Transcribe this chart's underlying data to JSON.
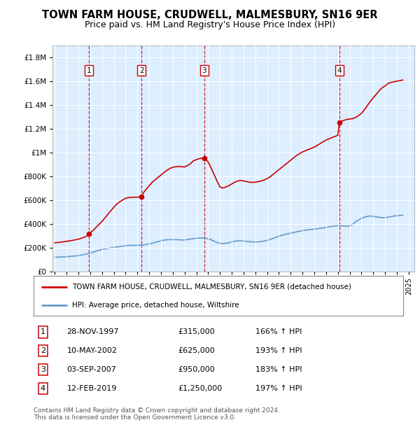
{
  "title": "TOWN FARM HOUSE, CRUDWELL, MALMESBURY, SN16 9ER",
  "subtitle": "Price paid vs. HM Land Registry's House Price Index (HPI)",
  "title_fontsize": 10.5,
  "subtitle_fontsize": 9,
  "background_color": "#ffffff",
  "plot_bg_color": "#ddeeff",
  "legend_line1": "TOWN FARM HOUSE, CRUDWELL, MALMESBURY, SN16 9ER (detached house)",
  "legend_line2": "HPI: Average price, detached house, Wiltshire",
  "footer": "Contains HM Land Registry data © Crown copyright and database right 2024.\nThis data is licensed under the Open Government Licence v3.0.",
  "transactions": [
    {
      "num": 1,
      "date": "28-NOV-1997",
      "price": 315000,
      "hpi_pct": "166% ↑ HPI",
      "year": 1997.91
    },
    {
      "num": 2,
      "date": "10-MAY-2002",
      "price": 625000,
      "hpi_pct": "193% ↑ HPI",
      "year": 2002.36
    },
    {
      "num": 3,
      "date": "03-SEP-2007",
      "price": 950000,
      "hpi_pct": "183% ↑ HPI",
      "year": 2007.67
    },
    {
      "num": 4,
      "date": "12-FEB-2019",
      "price": 1250000,
      "hpi_pct": "197% ↑ HPI",
      "year": 2019.12
    }
  ],
  "property_line_color": "#cc0000",
  "hpi_line_color": "#6699cc",
  "vline_color": "#cc0000",
  "ylim": [
    0,
    1900000
  ],
  "yticks": [
    0,
    200000,
    400000,
    600000,
    800000,
    1000000,
    1200000,
    1400000,
    1600000,
    1800000
  ],
  "ytick_labels": [
    "£0",
    "£200K",
    "£400K",
    "£600K",
    "£800K",
    "£1M",
    "£1.2M",
    "£1.4M",
    "£1.6M",
    "£1.8M"
  ],
  "xlim_start": 1994.8,
  "xlim_end": 2025.5,
  "xticks": [
    1995,
    1996,
    1997,
    1998,
    1999,
    2000,
    2001,
    2002,
    2003,
    2004,
    2005,
    2006,
    2007,
    2008,
    2009,
    2010,
    2011,
    2012,
    2013,
    2014,
    2015,
    2016,
    2017,
    2018,
    2019,
    2020,
    2021,
    2022,
    2023,
    2024,
    2025
  ],
  "property_data_x": [
    1995.0,
    1995.25,
    1995.5,
    1995.75,
    1996.0,
    1996.25,
    1996.5,
    1996.75,
    1997.0,
    1997.25,
    1997.5,
    1997.75,
    1997.91,
    1998.0,
    1998.25,
    1998.5,
    1998.75,
    1999.0,
    1999.25,
    1999.5,
    1999.75,
    2000.0,
    2000.25,
    2000.5,
    2000.75,
    2001.0,
    2001.25,
    2001.5,
    2001.75,
    2002.0,
    2002.36,
    2002.5,
    2002.75,
    2003.0,
    2003.25,
    2003.5,
    2003.75,
    2004.0,
    2004.25,
    2004.5,
    2004.75,
    2005.0,
    2005.25,
    2005.5,
    2005.75,
    2006.0,
    2006.25,
    2006.5,
    2006.75,
    2007.0,
    2007.25,
    2007.5,
    2007.67,
    2007.75,
    2008.0,
    2008.25,
    2008.5,
    2008.75,
    2009.0,
    2009.25,
    2009.5,
    2009.75,
    2010.0,
    2010.25,
    2010.5,
    2010.75,
    2011.0,
    2011.25,
    2011.5,
    2011.75,
    2012.0,
    2012.25,
    2012.5,
    2012.75,
    2013.0,
    2013.25,
    2013.5,
    2013.75,
    2014.0,
    2014.25,
    2014.5,
    2014.75,
    2015.0,
    2015.25,
    2015.5,
    2015.75,
    2016.0,
    2016.25,
    2016.5,
    2016.75,
    2017.0,
    2017.25,
    2017.5,
    2017.75,
    2018.0,
    2018.25,
    2018.5,
    2018.75,
    2019.0,
    2019.12,
    2019.25,
    2019.5,
    2019.75,
    2020.0,
    2020.25,
    2020.5,
    2020.75,
    2021.0,
    2021.25,
    2021.5,
    2021.75,
    2022.0,
    2022.25,
    2022.5,
    2022.75,
    2023.0,
    2023.25,
    2023.5,
    2023.75,
    2024.0,
    2024.25,
    2024.5
  ],
  "property_data_y": [
    240000,
    242000,
    245000,
    248000,
    252000,
    256000,
    260000,
    265000,
    270000,
    278000,
    287000,
    298000,
    315000,
    325000,
    345000,
    370000,
    395000,
    420000,
    450000,
    480000,
    510000,
    540000,
    565000,
    585000,
    600000,
    615000,
    620000,
    622000,
    623000,
    624000,
    625000,
    660000,
    690000,
    720000,
    748000,
    770000,
    790000,
    810000,
    830000,
    850000,
    865000,
    875000,
    880000,
    882000,
    880000,
    878000,
    890000,
    905000,
    930000,
    940000,
    948000,
    952000,
    950000,
    945000,
    920000,
    870000,
    815000,
    760000,
    710000,
    700000,
    710000,
    720000,
    735000,
    750000,
    760000,
    765000,
    760000,
    755000,
    750000,
    748000,
    750000,
    755000,
    760000,
    768000,
    780000,
    795000,
    815000,
    835000,
    855000,
    875000,
    895000,
    915000,
    935000,
    955000,
    975000,
    990000,
    1005000,
    1015000,
    1025000,
    1035000,
    1045000,
    1060000,
    1075000,
    1090000,
    1105000,
    1115000,
    1125000,
    1135000,
    1145000,
    1250000,
    1260000,
    1270000,
    1278000,
    1282000,
    1285000,
    1295000,
    1310000,
    1330000,
    1360000,
    1395000,
    1430000,
    1460000,
    1490000,
    1520000,
    1545000,
    1560000,
    1580000,
    1590000,
    1595000,
    1600000,
    1605000,
    1610000
  ],
  "hpi_data_x": [
    1995.0,
    1995.25,
    1995.5,
    1995.75,
    1996.0,
    1996.25,
    1996.5,
    1996.75,
    1997.0,
    1997.25,
    1997.5,
    1997.75,
    1998.0,
    1998.25,
    1998.5,
    1998.75,
    1999.0,
    1999.25,
    1999.5,
    1999.75,
    2000.0,
    2000.25,
    2000.5,
    2000.75,
    2001.0,
    2001.25,
    2001.5,
    2001.75,
    2002.0,
    2002.25,
    2002.5,
    2002.75,
    2003.0,
    2003.25,
    2003.5,
    2003.75,
    2004.0,
    2004.25,
    2004.5,
    2004.75,
    2005.0,
    2005.25,
    2005.5,
    2005.75,
    2006.0,
    2006.25,
    2006.5,
    2006.75,
    2007.0,
    2007.25,
    2007.5,
    2007.75,
    2008.0,
    2008.25,
    2008.5,
    2008.75,
    2009.0,
    2009.25,
    2009.5,
    2009.75,
    2010.0,
    2010.25,
    2010.5,
    2010.75,
    2011.0,
    2011.25,
    2011.5,
    2011.75,
    2012.0,
    2012.25,
    2012.5,
    2012.75,
    2013.0,
    2013.25,
    2013.5,
    2013.75,
    2014.0,
    2014.25,
    2014.5,
    2014.75,
    2015.0,
    2015.25,
    2015.5,
    2015.75,
    2016.0,
    2016.25,
    2016.5,
    2016.75,
    2017.0,
    2017.25,
    2017.5,
    2017.75,
    2018.0,
    2018.25,
    2018.5,
    2018.75,
    2019.0,
    2019.25,
    2019.5,
    2019.75,
    2020.0,
    2020.25,
    2020.5,
    2020.75,
    2021.0,
    2021.25,
    2021.5,
    2021.75,
    2022.0,
    2022.25,
    2022.5,
    2022.75,
    2023.0,
    2023.25,
    2023.5,
    2023.75,
    2024.0,
    2024.25,
    2024.5
  ],
  "hpi_data_y": [
    118000,
    119000,
    120000,
    121000,
    123000,
    125000,
    127000,
    129000,
    132000,
    136000,
    141000,
    147000,
    154000,
    162000,
    170000,
    177000,
    183000,
    188000,
    193000,
    197000,
    201000,
    204000,
    208000,
    212000,
    215000,
    217000,
    218000,
    218000,
    218000,
    220000,
    222000,
    226000,
    230000,
    236000,
    243000,
    250000,
    256000,
    262000,
    265000,
    266000,
    266000,
    266000,
    265000,
    263000,
    264000,
    267000,
    271000,
    275000,
    278000,
    280000,
    280000,
    278000,
    273000,
    265000,
    253000,
    242000,
    235000,
    233000,
    235000,
    240000,
    247000,
    253000,
    256000,
    256000,
    254000,
    252000,
    249000,
    247000,
    246000,
    247000,
    250000,
    254000,
    260000,
    268000,
    277000,
    286000,
    295000,
    303000,
    310000,
    316000,
    321000,
    326000,
    332000,
    337000,
    342000,
    347000,
    350000,
    352000,
    354000,
    357000,
    361000,
    365000,
    369000,
    374000,
    378000,
    381000,
    383000,
    382000,
    380000,
    378000,
    382000,
    395000,
    415000,
    432000,
    446000,
    456000,
    462000,
    465000,
    462000,
    458000,
    454000,
    451000,
    452000,
    455000,
    460000,
    465000,
    468000,
    470000,
    472000
  ]
}
